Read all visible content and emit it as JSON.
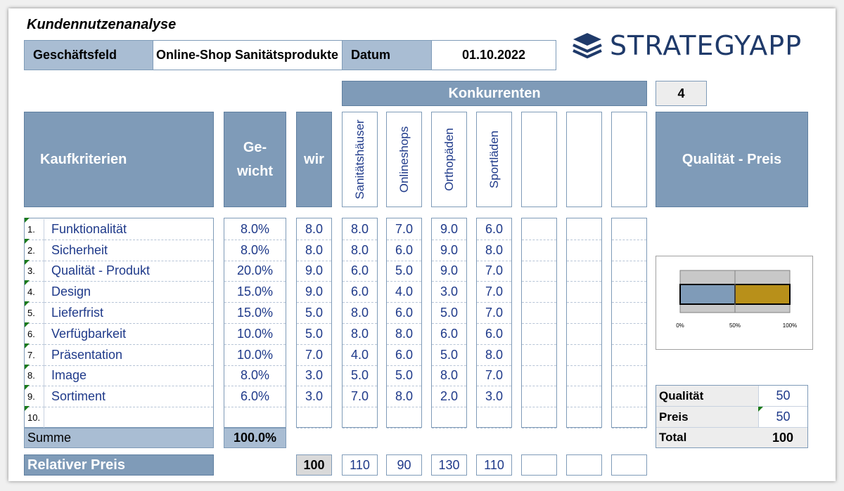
{
  "title": "Kundennutzenanalyse",
  "header": {
    "field_label": "Geschäftsfeld",
    "field_value": "Online-Shop Sanitätsprodukte",
    "date_label": "Datum",
    "date_value": "01.10.2022"
  },
  "logo": {
    "text": "STRATEGYAPP"
  },
  "competitors_header": "Konkurrenten",
  "competitor_count": "4",
  "columns": {
    "criteria": "Kaufkriterien",
    "weight_line1": "Ge-",
    "weight_line2": "wicht",
    "us": "wir",
    "quality_price": "Qualität - Preis"
  },
  "competitors": [
    "Sanitätshäuser",
    "Onlineshops",
    "Orthopäden",
    "Sportläden",
    "",
    "",
    ""
  ],
  "criteria": [
    {
      "num": "1.",
      "label": "Funktionalität",
      "weight": "8.0%",
      "us": "8.0",
      "comp": [
        "8.0",
        "7.0",
        "9.0",
        "6.0",
        "",
        "",
        ""
      ]
    },
    {
      "num": "2.",
      "label": "Sicherheit",
      "weight": "8.0%",
      "us": "8.0",
      "comp": [
        "8.0",
        "6.0",
        "9.0",
        "8.0",
        "",
        "",
        ""
      ]
    },
    {
      "num": "3.",
      "label": "Qualität - Produkt",
      "weight": "20.0%",
      "us": "9.0",
      "comp": [
        "6.0",
        "5.0",
        "9.0",
        "7.0",
        "",
        "",
        ""
      ]
    },
    {
      "num": "4.",
      "label": "Design",
      "weight": "15.0%",
      "us": "9.0",
      "comp": [
        "6.0",
        "4.0",
        "3.0",
        "7.0",
        "",
        "",
        ""
      ]
    },
    {
      "num": "5.",
      "label": "Lieferfrist",
      "weight": "15.0%",
      "us": "5.0",
      "comp": [
        "8.0",
        "6.0",
        "5.0",
        "7.0",
        "",
        "",
        ""
      ]
    },
    {
      "num": "6.",
      "label": "Verfügbarkeit",
      "weight": "10.0%",
      "us": "5.0",
      "comp": [
        "8.0",
        "8.0",
        "6.0",
        "6.0",
        "",
        "",
        ""
      ]
    },
    {
      "num": "7.",
      "label": "Präsentation",
      "weight": "10.0%",
      "us": "7.0",
      "comp": [
        "4.0",
        "6.0",
        "5.0",
        "8.0",
        "",
        "",
        ""
      ]
    },
    {
      "num": "8.",
      "label": "Image",
      "weight": "8.0%",
      "us": "3.0",
      "comp": [
        "5.0",
        "5.0",
        "8.0",
        "7.0",
        "",
        "",
        ""
      ]
    },
    {
      "num": "9.",
      "label": "Sortiment",
      "weight": "6.0%",
      "us": "3.0",
      "comp": [
        "7.0",
        "8.0",
        "2.0",
        "3.0",
        "",
        "",
        ""
      ]
    },
    {
      "num": "10.",
      "label": "",
      "weight": "",
      "us": "",
      "comp": [
        "",
        "",
        "",
        "",
        "",
        "",
        ""
      ]
    }
  ],
  "sum": {
    "label": "Summe",
    "value": "100.0%"
  },
  "relative_price": {
    "label": "Relativer Preis",
    "us": "100",
    "comp": [
      "110",
      "90",
      "130",
      "110",
      "",
      "",
      ""
    ]
  },
  "quality_price_chart": {
    "segments": [
      {
        "name": "Qualität",
        "value": 50,
        "color": "#7f9bb8"
      },
      {
        "name": "Preis",
        "value": 50,
        "color": "#b8901a"
      }
    ],
    "ticks": [
      "0%",
      "50%",
      "100%"
    ]
  },
  "quality_price_table": {
    "quality_label": "Qualität",
    "quality_value": "50",
    "price_label": "Preis",
    "price_value": "50",
    "total_label": "Total",
    "total_value": "100"
  }
}
